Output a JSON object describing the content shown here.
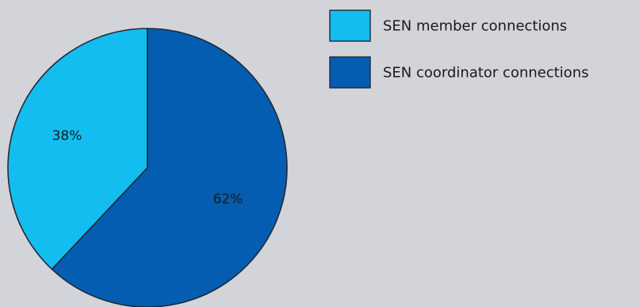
{
  "chart_data": {
    "type": "pie",
    "series": [
      {
        "name": "SEN member connections",
        "value": 38,
        "label": "38%",
        "color": "#14bdef"
      },
      {
        "name": "SEN coordinator connections",
        "value": 62,
        "label": "62%",
        "color": "#045db0"
      }
    ],
    "legend_position": "top-right",
    "start_angle": "12 o'clock",
    "direction": "counterclockwise for first slice"
  },
  "colors": {
    "background": "#d3d4d9",
    "outline": "#1f2a3a"
  }
}
